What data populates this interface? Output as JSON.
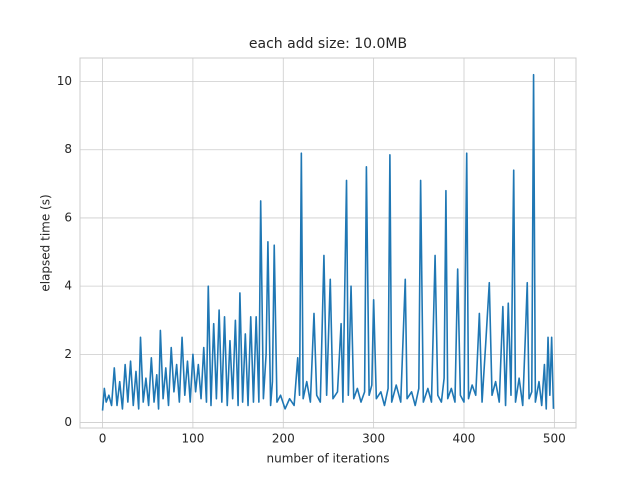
{
  "chart_data": {
    "type": "line",
    "title": "each add size: 10.0MB",
    "x_label": "number of iterations",
    "y_label": "elapsed time (s)",
    "color": "#1f77b4",
    "grid": true,
    "xlim": [
      -24.95,
      523.95
    ],
    "ylim": [
      -0.16,
      10.69
    ],
    "xticks": [
      0,
      100,
      200,
      300,
      400,
      500
    ],
    "yticks": [
      0,
      2,
      4,
      6,
      8,
      10
    ],
    "x": [
      0,
      2,
      4,
      7,
      10,
      13,
      16,
      19,
      22,
      25,
      28,
      31,
      34,
      37,
      40,
      42,
      45,
      48,
      51,
      54,
      57,
      60,
      62,
      64,
      67,
      70,
      73,
      76,
      79,
      82,
      85,
      88,
      91,
      94,
      97,
      100,
      103,
      106,
      109,
      112,
      115,
      117,
      120,
      123,
      126,
      129,
      132,
      135,
      138,
      141,
      144,
      147,
      150,
      152,
      155,
      158,
      161,
      164,
      167,
      170,
      173,
      175,
      178,
      181,
      183,
      186,
      188,
      190,
      193,
      197,
      202,
      207,
      212,
      216,
      218,
      220,
      222,
      226,
      230,
      234,
      237,
      241,
      245,
      248,
      252,
      255,
      260,
      264,
      266,
      270,
      272,
      275,
      278,
      282,
      286,
      290,
      292,
      295,
      298,
      300,
      303,
      308,
      312,
      316,
      318,
      320,
      325,
      330,
      335,
      337,
      342,
      346,
      350,
      352,
      355,
      360,
      364,
      368,
      371,
      375,
      378,
      380,
      382,
      386,
      390,
      393,
      396,
      400,
      403,
      405,
      409,
      413,
      417,
      420,
      424,
      428,
      431,
      435,
      439,
      443,
      446,
      449,
      452,
      455,
      457,
      461,
      465,
      468,
      470,
      472,
      475,
      477,
      479,
      483,
      486,
      489,
      491,
      493,
      495,
      497,
      499
    ],
    "values": [
      0.35,
      1.0,
      0.6,
      0.8,
      0.5,
      1.6,
      0.5,
      1.2,
      0.4,
      1.7,
      0.6,
      1.8,
      0.5,
      1.5,
      0.4,
      2.5,
      0.6,
      1.3,
      0.5,
      1.9,
      0.6,
      1.4,
      0.4,
      2.7,
      0.7,
      1.6,
      0.5,
      2.2,
      0.9,
      1.7,
      0.6,
      2.5,
      0.8,
      1.8,
      0.6,
      2.0,
      0.9,
      1.7,
      0.7,
      2.2,
      0.6,
      4.0,
      0.5,
      2.9,
      0.7,
      3.3,
      0.6,
      3.1,
      0.5,
      2.4,
      0.7,
      3.0,
      0.5,
      3.8,
      0.6,
      2.6,
      0.5,
      3.1,
      0.6,
      3.1,
      0.6,
      6.5,
      0.7,
      2.0,
      5.3,
      0.5,
      1.2,
      5.2,
      0.6,
      0.8,
      0.4,
      0.7,
      0.5,
      1.9,
      0.8,
      7.9,
      0.7,
      1.2,
      0.6,
      3.2,
      0.8,
      0.6,
      4.9,
      0.8,
      4.2,
      0.7,
      0.9,
      2.9,
      0.6,
      7.1,
      0.8,
      4.0,
      0.7,
      1.0,
      0.6,
      0.9,
      7.5,
      0.8,
      1.1,
      3.6,
      0.7,
      0.9,
      0.5,
      1.0,
      7.85,
      0.6,
      1.1,
      0.6,
      4.2,
      0.7,
      0.9,
      0.5,
      1.0,
      7.1,
      0.6,
      1.0,
      0.6,
      4.9,
      0.8,
      0.6,
      1.3,
      6.8,
      0.7,
      1.0,
      0.6,
      4.5,
      0.8,
      0.6,
      7.9,
      0.7,
      1.1,
      0.8,
      3.2,
      0.6,
      2.3,
      4.1,
      0.8,
      1.2,
      0.6,
      3.4,
      0.5,
      3.5,
      0.8,
      7.4,
      0.6,
      1.3,
      0.5,
      2.6,
      4.1,
      0.7,
      0.9,
      10.2,
      0.6,
      1.2,
      0.5,
      1.7,
      0.4,
      2.5,
      0.8,
      2.5,
      0.4
    ]
  }
}
